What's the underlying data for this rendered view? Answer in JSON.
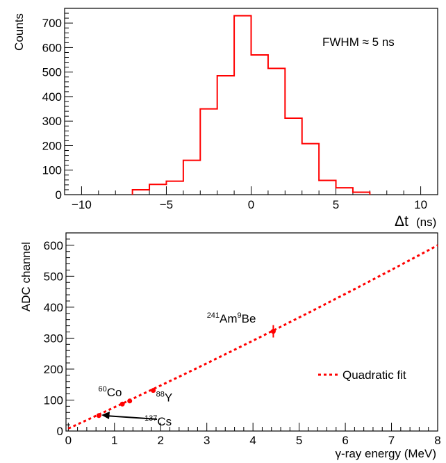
{
  "chart_data": [
    {
      "type": "histogram",
      "xlabel": "Δt",
      "xlabel_unit": "(ns)",
      "ylabel": "Counts",
      "xlim": [
        -11,
        11
      ],
      "ylim": [
        0,
        760
      ],
      "xticks": [
        -10,
        -5,
        0,
        5,
        10
      ],
      "yticks": [
        0,
        100,
        200,
        300,
        400,
        500,
        600,
        700
      ],
      "grid": false,
      "color": "#ff0000",
      "annotation": "FWHM ≈ 5 ns",
      "bin_edges": [
        -7,
        -6,
        -5,
        -4,
        -3,
        -2,
        -1,
        0,
        1,
        2,
        3,
        4,
        5,
        6,
        7
      ],
      "counts": [
        20,
        42,
        55,
        140,
        350,
        485,
        730,
        570,
        515,
        312,
        208,
        58,
        28,
        10
      ]
    },
    {
      "type": "scatter",
      "xlabel": "γ-ray energy (MeV)",
      "ylabel": "ADC channel",
      "xlim": [
        -0.05,
        8
      ],
      "ylim": [
        0,
        640
      ],
      "xticks": [
        0,
        1,
        2,
        3,
        4,
        5,
        6,
        7,
        8
      ],
      "yticks": [
        0,
        100,
        200,
        300,
        400,
        500,
        600
      ],
      "grid": false,
      "legend_position": "right",
      "color": "#ff0000",
      "points": [
        {
          "x": 0.662,
          "y": 50,
          "err": 4
        },
        {
          "x": 1.17,
          "y": 87,
          "err": 6
        },
        {
          "x": 1.33,
          "y": 97,
          "err": 6
        },
        {
          "x": 1.84,
          "y": 131,
          "err": 7
        },
        {
          "x": 4.44,
          "y": 322,
          "err": 20
        }
      ],
      "fit": {
        "name": "Quadratic fit",
        "x_range": [
          0,
          8
        ],
        "coefficients": [
          8,
          68,
          0.75
        ]
      },
      "labels": [
        {
          "mass": "60",
          "element": "Co",
          "x": 0.65,
          "y": 112
        },
        {
          "mass": "88",
          "element": "Y",
          "x": 1.9,
          "y": 95
        },
        {
          "mass": "241",
          "element": "Am",
          "mass2": "9",
          "element2": "Be",
          "x": 3.0,
          "y": 350
        },
        {
          "mass": "137",
          "element": "Cs",
          "x": 1.65,
          "y": 18
        }
      ]
    }
  ]
}
